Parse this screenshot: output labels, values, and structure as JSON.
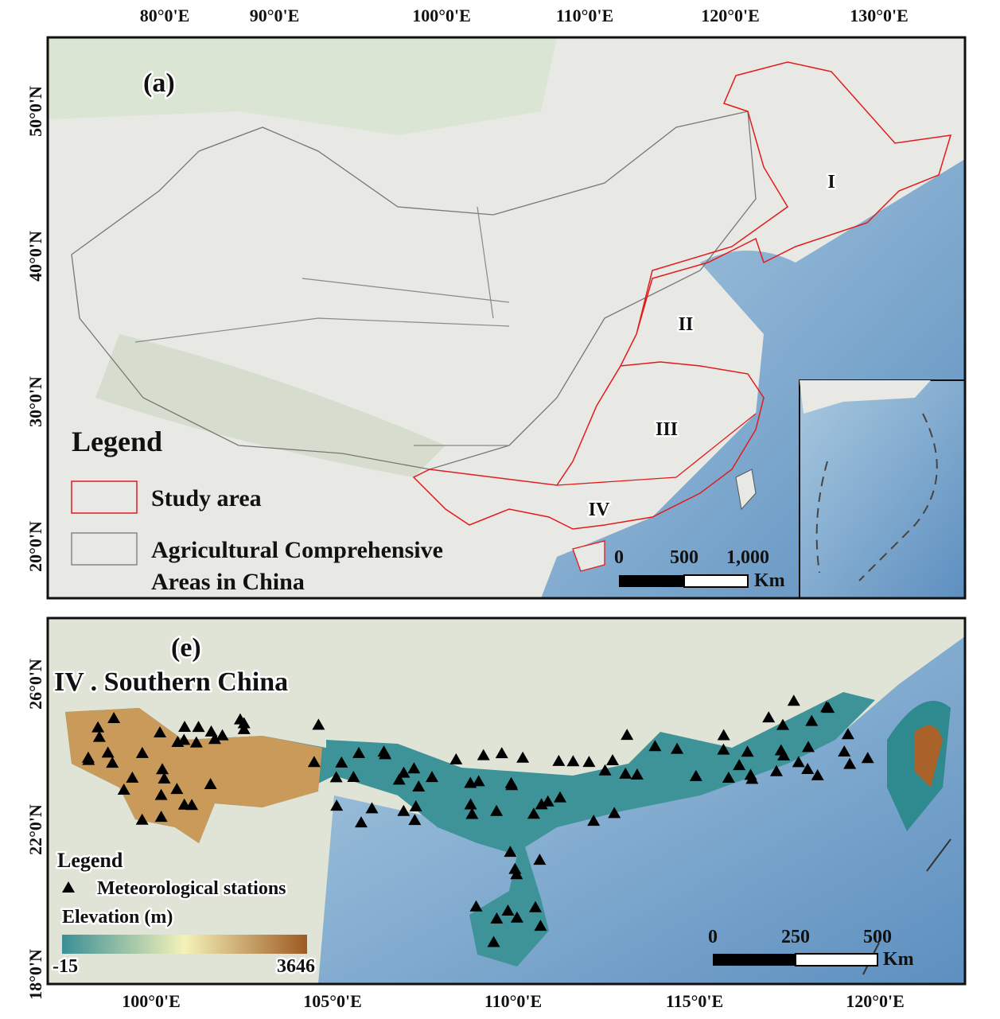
{
  "panel_a": {
    "label": "(a)",
    "lon_ticks": [
      "80°0'E",
      "90°0'E",
      "100°0'E",
      "110°0'E",
      "120°0'E",
      "130°0'E"
    ],
    "lat_ticks": [
      "50°0'N",
      "40°0'N",
      "30°0'N",
      "20°0'N"
    ],
    "regions": [
      "I",
      "II",
      "III",
      "IV"
    ],
    "legend": {
      "title": "Legend",
      "items": [
        "Study area",
        "Agricultural Comprehensive",
        "Areas in China"
      ]
    },
    "scale": [
      "0",
      "500",
      "1,000",
      "Km"
    ]
  },
  "panel_e": {
    "label": "(e)",
    "title": "IV . Southern China",
    "lon_ticks": [
      "100°0'E",
      "105°0'E",
      "110°0'E",
      "115°0'E",
      "120°0'E"
    ],
    "lat_ticks": [
      "26°0'N",
      "22°0'N",
      "18°0'N"
    ],
    "legend": {
      "title": "Legend",
      "station": "Meteorological stations",
      "elevation": "Elevation (m)",
      "min": "-15",
      "max": "3646"
    },
    "scale": [
      "0",
      "250",
      "500",
      "Km"
    ]
  }
}
